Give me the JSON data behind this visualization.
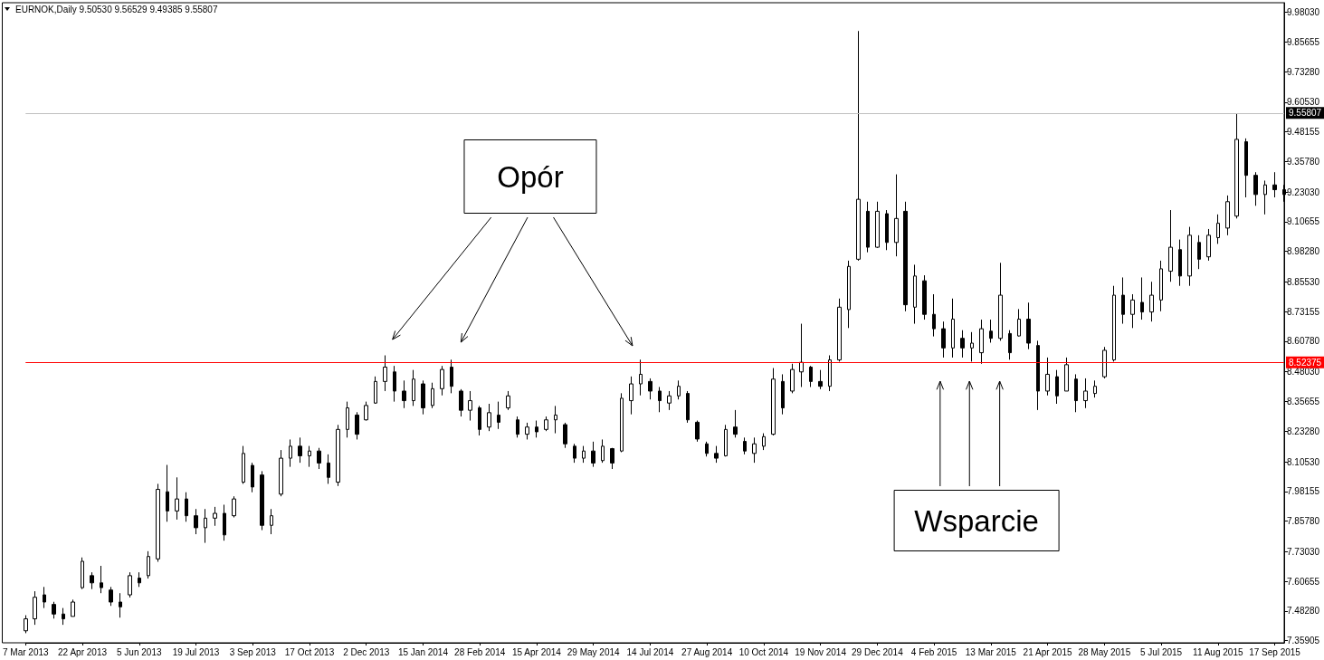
{
  "chart_data": {
    "type": "candlestick",
    "title": "EURNOK,Daily 9.50530 9.56529 9.49385 9.55807",
    "annotations": [
      "Opór",
      "Wsparcie"
    ],
    "color": "#000000",
    "categories": [
      "7 Mar 2013",
      null,
      null,
      null,
      null,
      null,
      "22 Apr 2013",
      null,
      null,
      null,
      null,
      null,
      "5 Jun 2013",
      null,
      null,
      null,
      null,
      null,
      "19 Jul 2013",
      null,
      null,
      null,
      null,
      null,
      "3 Sep 2013",
      null,
      null,
      null,
      null,
      null,
      "17 Oct 2013",
      null,
      null,
      null,
      null,
      null,
      "2 Dec 2013",
      null,
      null,
      null,
      null,
      null,
      "15 Jan 2014",
      null,
      null,
      null,
      null,
      null,
      "28 Feb 2014",
      null,
      null,
      null,
      null,
      null,
      "15 Apr 2014",
      null,
      null,
      null,
      null,
      null,
      "29 May 2014",
      null,
      null,
      null,
      null,
      null,
      "14 Jul 2014",
      null,
      null,
      null,
      null,
      null,
      "27 Aug 2014",
      null,
      null,
      null,
      null,
      null,
      "10 Oct 2014",
      null,
      null,
      null,
      null,
      null,
      "19 Nov 2014",
      null,
      null,
      null,
      null,
      null,
      "29 Dec 2014",
      null,
      null,
      null,
      null,
      null,
      "4 Feb 2015",
      null,
      null,
      null,
      null,
      null,
      "13 Mar 2015",
      null,
      null,
      null,
      null,
      null,
      "21 Apr 2015",
      null,
      null,
      null,
      null,
      null,
      "28 May 2015",
      null,
      null,
      null,
      null,
      null,
      "5 Jul 2015",
      null,
      null,
      null,
      null,
      null,
      "11 Aug 2015",
      null,
      null,
      null,
      null,
      null,
      "17 Sep 2015",
      null
    ],
    "ohlc": [
      [
        7.4,
        7.465,
        7.39,
        7.45
      ],
      [
        7.45,
        7.565,
        7.425,
        7.54
      ],
      [
        7.55,
        7.583,
        7.495,
        7.52
      ],
      [
        7.51,
        7.521,
        7.451,
        7.47
      ],
      [
        7.47,
        7.495,
        7.425,
        7.45
      ],
      [
        7.46,
        7.53,
        7.46,
        7.52
      ],
      [
        7.58,
        7.706,
        7.574,
        7.69
      ],
      [
        7.63,
        7.644,
        7.574,
        7.6
      ],
      [
        7.6,
        7.671,
        7.557,
        7.58
      ],
      [
        7.57,
        7.583,
        7.504,
        7.52
      ],
      [
        7.52,
        7.557,
        7.455,
        7.5
      ],
      [
        7.55,
        7.644,
        7.539,
        7.63
      ],
      [
        7.62,
        7.644,
        7.583,
        7.6
      ],
      [
        7.63,
        7.732,
        7.618,
        7.71
      ],
      [
        7.7,
        8.013,
        7.688,
        7.99
      ],
      [
        7.98,
        8.092,
        7.855,
        7.9
      ],
      [
        7.9,
        8.04,
        7.864,
        7.95
      ],
      [
        7.95,
        7.978,
        7.855,
        7.88
      ],
      [
        7.88,
        7.908,
        7.803,
        7.83
      ],
      [
        7.83,
        7.908,
        7.767,
        7.87
      ],
      [
        7.87,
        7.917,
        7.838,
        7.89
      ],
      [
        7.89,
        7.926,
        7.776,
        7.8
      ],
      [
        7.88,
        7.961,
        7.873,
        7.95
      ],
      [
        8.02,
        8.171,
        8.013,
        8.14
      ],
      [
        8.09,
        8.101,
        7.978,
        8.0
      ],
      [
        8.05,
        8.066,
        7.82,
        7.84
      ],
      [
        7.84,
        7.908,
        7.803,
        7.88
      ],
      [
        7.97,
        8.154,
        7.961,
        8.12
      ],
      [
        8.12,
        8.198,
        8.084,
        8.17
      ],
      [
        8.17,
        8.206,
        8.101,
        8.13
      ],
      [
        8.13,
        8.171,
        8.084,
        8.15
      ],
      [
        8.15,
        8.163,
        8.075,
        8.1
      ],
      [
        8.1,
        8.136,
        8.013,
        8.04
      ],
      [
        8.02,
        8.259,
        8.004,
        8.24
      ],
      [
        8.24,
        8.356,
        8.206,
        8.33
      ],
      [
        8.3,
        8.312,
        8.198,
        8.22
      ],
      [
        8.28,
        8.356,
        8.277,
        8.34
      ],
      [
        8.35,
        8.461,
        8.347,
        8.44
      ],
      [
        8.44,
        8.549,
        8.4,
        8.5
      ],
      [
        8.48,
        8.505,
        8.356,
        8.4
      ],
      [
        8.4,
        8.444,
        8.329,
        8.36
      ],
      [
        8.36,
        8.488,
        8.338,
        8.45
      ],
      [
        8.43,
        8.444,
        8.303,
        8.33
      ],
      [
        8.34,
        8.435,
        8.329,
        8.41
      ],
      [
        8.41,
        8.505,
        8.382,
        8.49
      ],
      [
        8.5,
        8.531,
        8.391,
        8.42
      ],
      [
        8.4,
        8.408,
        8.294,
        8.32
      ],
      [
        8.32,
        8.4,
        8.277,
        8.36
      ],
      [
        8.33,
        8.338,
        8.215,
        8.24
      ],
      [
        8.25,
        8.347,
        8.233,
        8.31
      ],
      [
        8.3,
        8.356,
        8.242,
        8.27
      ],
      [
        8.33,
        8.4,
        8.321,
        8.38
      ],
      [
        8.28,
        8.294,
        8.206,
        8.22
      ],
      [
        8.22,
        8.268,
        8.198,
        8.25
      ],
      [
        8.25,
        8.277,
        8.206,
        8.23
      ],
      [
        8.24,
        8.294,
        8.233,
        8.28
      ],
      [
        8.28,
        8.338,
        8.224,
        8.3
      ],
      [
        8.26,
        8.268,
        8.163,
        8.18
      ],
      [
        8.17,
        8.18,
        8.101,
        8.12
      ],
      [
        8.12,
        8.171,
        8.101,
        8.15
      ],
      [
        8.15,
        8.189,
        8.084,
        8.1
      ],
      [
        8.11,
        8.198,
        8.101,
        8.17
      ],
      [
        8.16,
        8.163,
        8.075,
        8.1
      ],
      [
        8.15,
        8.391,
        8.145,
        8.37
      ],
      [
        8.36,
        8.461,
        8.303,
        8.43
      ],
      [
        8.43,
        8.531,
        8.382,
        8.47
      ],
      [
        8.44,
        8.453,
        8.365,
        8.4
      ],
      [
        8.4,
        8.417,
        8.312,
        8.36
      ],
      [
        8.35,
        8.4,
        8.321,
        8.38
      ],
      [
        8.38,
        8.444,
        8.365,
        8.42
      ],
      [
        8.39,
        8.4,
        8.268,
        8.28
      ],
      [
        8.27,
        8.277,
        8.189,
        8.2
      ],
      [
        8.18,
        8.189,
        8.127,
        8.14
      ],
      [
        8.14,
        8.171,
        8.101,
        8.12
      ],
      [
        8.13,
        8.259,
        8.127,
        8.24
      ],
      [
        8.25,
        8.321,
        8.206,
        8.22
      ],
      [
        8.19,
        8.206,
        8.136,
        8.15
      ],
      [
        8.14,
        8.206,
        8.101,
        8.18
      ],
      [
        8.17,
        8.224,
        8.154,
        8.21
      ],
      [
        8.22,
        8.496,
        8.215,
        8.45
      ],
      [
        8.44,
        8.47,
        8.303,
        8.33
      ],
      [
        8.4,
        8.514,
        8.391,
        8.49
      ],
      [
        8.48,
        8.681,
        8.417,
        8.52
      ],
      [
        8.5,
        8.505,
        8.417,
        8.44
      ],
      [
        8.44,
        8.488,
        8.408,
        8.42
      ],
      [
        8.42,
        8.549,
        8.4,
        8.53
      ],
      [
        8.53,
        8.786,
        8.523,
        8.75
      ],
      [
        8.74,
        8.944,
        8.663,
        8.92
      ],
      [
        8.95,
        9.902,
        8.944,
        9.2
      ],
      [
        9.15,
        9.19,
        8.979,
        9.0
      ],
      [
        9.0,
        9.19,
        8.997,
        9.15
      ],
      [
        9.14,
        9.155,
        8.988,
        9.02
      ],
      [
        9.02,
        9.304,
        8.962,
        9.12
      ],
      [
        9.15,
        9.19,
        8.733,
        8.76
      ],
      [
        8.75,
        8.927,
        8.681,
        8.88
      ],
      [
        8.86,
        8.883,
        8.698,
        8.72
      ],
      [
        8.72,
        8.804,
        8.628,
        8.66
      ],
      [
        8.66,
        8.69,
        8.54,
        8.58
      ],
      [
        8.58,
        8.786,
        8.54,
        8.7
      ],
      [
        8.62,
        8.654,
        8.54,
        8.58
      ],
      [
        8.58,
        8.646,
        8.523,
        8.6
      ],
      [
        8.56,
        8.698,
        8.514,
        8.66
      ],
      [
        8.65,
        8.698,
        8.602,
        8.62
      ],
      [
        8.62,
        8.935,
        8.61,
        8.8
      ],
      [
        8.64,
        8.654,
        8.531,
        8.56
      ],
      [
        8.63,
        8.742,
        8.628,
        8.7
      ],
      [
        8.7,
        8.769,
        8.575,
        8.6
      ],
      [
        8.59,
        8.61,
        8.321,
        8.4
      ],
      [
        8.4,
        8.54,
        8.382,
        8.47
      ],
      [
        8.46,
        8.488,
        8.347,
        8.38
      ],
      [
        8.4,
        8.54,
        8.4,
        8.51
      ],
      [
        8.45,
        8.47,
        8.312,
        8.36
      ],
      [
        8.36,
        8.453,
        8.329,
        8.4
      ],
      [
        8.39,
        8.444,
        8.373,
        8.42
      ],
      [
        8.46,
        8.584,
        8.453,
        8.57
      ],
      [
        8.53,
        8.839,
        8.523,
        8.8
      ],
      [
        8.8,
        8.874,
        8.681,
        8.72
      ],
      [
        8.72,
        8.804,
        8.663,
        8.78
      ],
      [
        8.77,
        8.874,
        8.698,
        8.73
      ],
      [
        8.73,
        8.856,
        8.69,
        8.8
      ],
      [
        8.78,
        8.944,
        8.733,
        8.91
      ],
      [
        8.9,
        9.155,
        8.856,
        9.0
      ],
      [
        8.99,
        9.032,
        8.839,
        8.88
      ],
      [
        8.88,
        9.085,
        8.839,
        9.05
      ],
      [
        9.02,
        9.05,
        8.909,
        8.95
      ],
      [
        8.96,
        9.076,
        8.944,
        9.05
      ],
      [
        9.04,
        9.137,
        9.014,
        9.1
      ],
      [
        9.08,
        9.216,
        9.05,
        9.19
      ],
      [
        9.13,
        9.559,
        9.12,
        9.45
      ],
      [
        9.44,
        9.454,
        9.208,
        9.3
      ],
      [
        9.3,
        9.313,
        9.173,
        9.22
      ],
      [
        9.22,
        9.278,
        9.137,
        9.26
      ],
      [
        9.26,
        9.313,
        9.208,
        9.24
      ],
      [
        9.24,
        9.26,
        9.19,
        9.22
      ]
    ],
    "ylim": [
      7.35,
      10.02
    ],
    "yticks": [
      {
        "value": 9.9803,
        "label": "9.98030"
      },
      9.85655,
      {
        "value": 9.7328,
        "label": "9.73280"
      },
      {
        "value": 9.6053,
        "label": "9.60530"
      },
      9.48155,
      {
        "value": 9.3578,
        "label": "9.35780"
      },
      {
        "value": 9.2303,
        "label": "9.23030"
      },
      9.10655,
      {
        "value": 8.9828,
        "label": "8.98280"
      },
      {
        "value": 8.8553,
        "label": "8.85530"
      },
      8.73155,
      {
        "value": 8.6078,
        "label": "8.60780"
      },
      {
        "value": 8.4803,
        "label": "8.48030"
      },
      8.35655,
      {
        "value": 8.2328,
        "label": "8.23280"
      },
      {
        "value": 8.1053,
        "label": "8.10530"
      },
      7.98155,
      {
        "value": 7.8578,
        "label": "7.85780"
      },
      {
        "value": 7.7303,
        "label": "7.73030"
      },
      7.60655,
      {
        "value": 7.4828,
        "label": "7.48280"
      },
      7.35905
    ],
    "ref_lines": [
      {
        "axis": "y",
        "value": 9.55807,
        "label": "9.55807",
        "color": "#c0c0c0"
      },
      {
        "axis": "y",
        "value": 8.52375,
        "label": "8.52375",
        "color": "#ff0000"
      }
    ]
  }
}
